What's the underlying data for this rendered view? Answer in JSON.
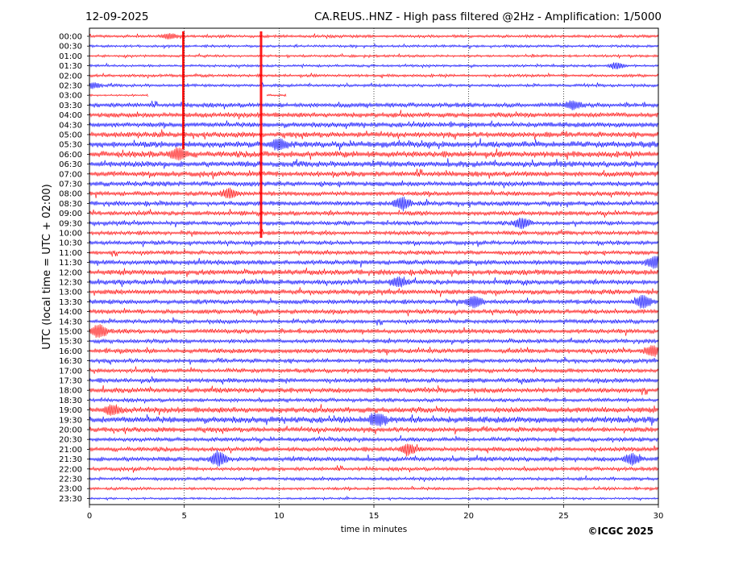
{
  "header": {
    "date": "12-09-2025",
    "title": "CA.REUS..HNZ - High pass filtered @2Hz - Amplification: 1/5000"
  },
  "copyright": "©ICGC 2025",
  "colors": {
    "red": "#ff0000",
    "blue": "#0000ff",
    "gridline": "#000000"
  },
  "chart_data": {
    "type": "line",
    "xlabel": "time in minutes",
    "ylabel": "UTC (local time = UTC + 02:00)",
    "xlim": [
      0,
      30
    ],
    "x_ticks": [
      "0",
      "5",
      "10",
      "15",
      "20",
      "25",
      "30"
    ],
    "x_grid_minutes": [
      5,
      10,
      15,
      20,
      25
    ],
    "series_color_order": [
      "red",
      "blue"
    ],
    "rows": [
      "00:00",
      "00:30",
      "01:00",
      "01:30",
      "02:00",
      "02:30",
      "03:00",
      "03:30",
      "04:00",
      "04:30",
      "05:00",
      "05:30",
      "06:00",
      "06:30",
      "07:00",
      "07:30",
      "08:00",
      "08:30",
      "09:00",
      "09:30",
      "10:00",
      "10:30",
      "11:00",
      "11:30",
      "12:00",
      "12:30",
      "13:00",
      "13:30",
      "14:00",
      "14:30",
      "15:00",
      "15:30",
      "16:00",
      "16:30",
      "17:00",
      "17:30",
      "18:00",
      "18:30",
      "19:00",
      "19:30",
      "20:00",
      "20:30",
      "21:00",
      "21:30",
      "22:00",
      "22:30",
      "23:00",
      "23:30"
    ],
    "amplitude": [
      0.35,
      0.3,
      0.3,
      0.3,
      0.35,
      0.35,
      0.25,
      0.55,
      0.6,
      0.6,
      0.65,
      0.75,
      0.75,
      0.7,
      0.65,
      0.6,
      0.55,
      0.55,
      0.55,
      0.5,
      0.5,
      0.5,
      0.5,
      0.6,
      0.65,
      0.6,
      0.6,
      0.55,
      0.55,
      0.5,
      0.55,
      0.5,
      0.55,
      0.5,
      0.5,
      0.55,
      0.6,
      0.45,
      0.7,
      0.75,
      0.6,
      0.5,
      0.55,
      0.55,
      0.45,
      0.4,
      0.35,
      0.25
    ],
    "events": [
      {
        "row": "00:00",
        "minute": 4.2,
        "amp": 0.4
      },
      {
        "row": "01:30",
        "minute": 27.8,
        "amp": 0.5
      },
      {
        "row": "02:30",
        "minute": 0.2,
        "amp": 0.4
      },
      {
        "row": "03:30",
        "minute": 25.5,
        "amp": 0.6
      },
      {
        "row": "05:30",
        "minute": 10.0,
        "amp": 0.8
      },
      {
        "row": "06:00",
        "minute": 4.7,
        "amp": 0.9
      },
      {
        "row": "08:00",
        "minute": 7.4,
        "amp": 0.7
      },
      {
        "row": "08:30",
        "minute": 16.5,
        "amp": 0.9
      },
      {
        "row": "09:30",
        "minute": 22.8,
        "amp": 0.8
      },
      {
        "row": "11:30",
        "minute": 29.8,
        "amp": 0.9
      },
      {
        "row": "12:30",
        "minute": 16.3,
        "amp": 0.7
      },
      {
        "row": "13:30",
        "minute": 20.3,
        "amp": 0.9
      },
      {
        "row": "13:30",
        "minute": 29.2,
        "amp": 1.0
      },
      {
        "row": "15:00",
        "minute": 0.5,
        "amp": 1.0
      },
      {
        "row": "16:00",
        "minute": 29.7,
        "amp": 0.8
      },
      {
        "row": "19:00",
        "minute": 1.2,
        "amp": 0.7
      },
      {
        "row": "19:30",
        "minute": 15.2,
        "amp": 0.9
      },
      {
        "row": "21:00",
        "minute": 16.8,
        "amp": 0.8
      },
      {
        "row": "21:30",
        "minute": 6.8,
        "amp": 1.0
      },
      {
        "row": "21:30",
        "minute": 28.6,
        "amp": 0.8
      }
    ],
    "gaps": [
      {
        "row": "03:00",
        "from": 3.1,
        "to": 9.3
      },
      {
        "row": "03:00",
        "from": 10.4,
        "to": 30.0
      }
    ],
    "vertical_spikes": [
      {
        "minute": 4.95,
        "from_row": "00:00",
        "to_row": "05:30"
      },
      {
        "minute": 9.05,
        "from_row": "00:00",
        "to_row": "10:00"
      }
    ]
  }
}
